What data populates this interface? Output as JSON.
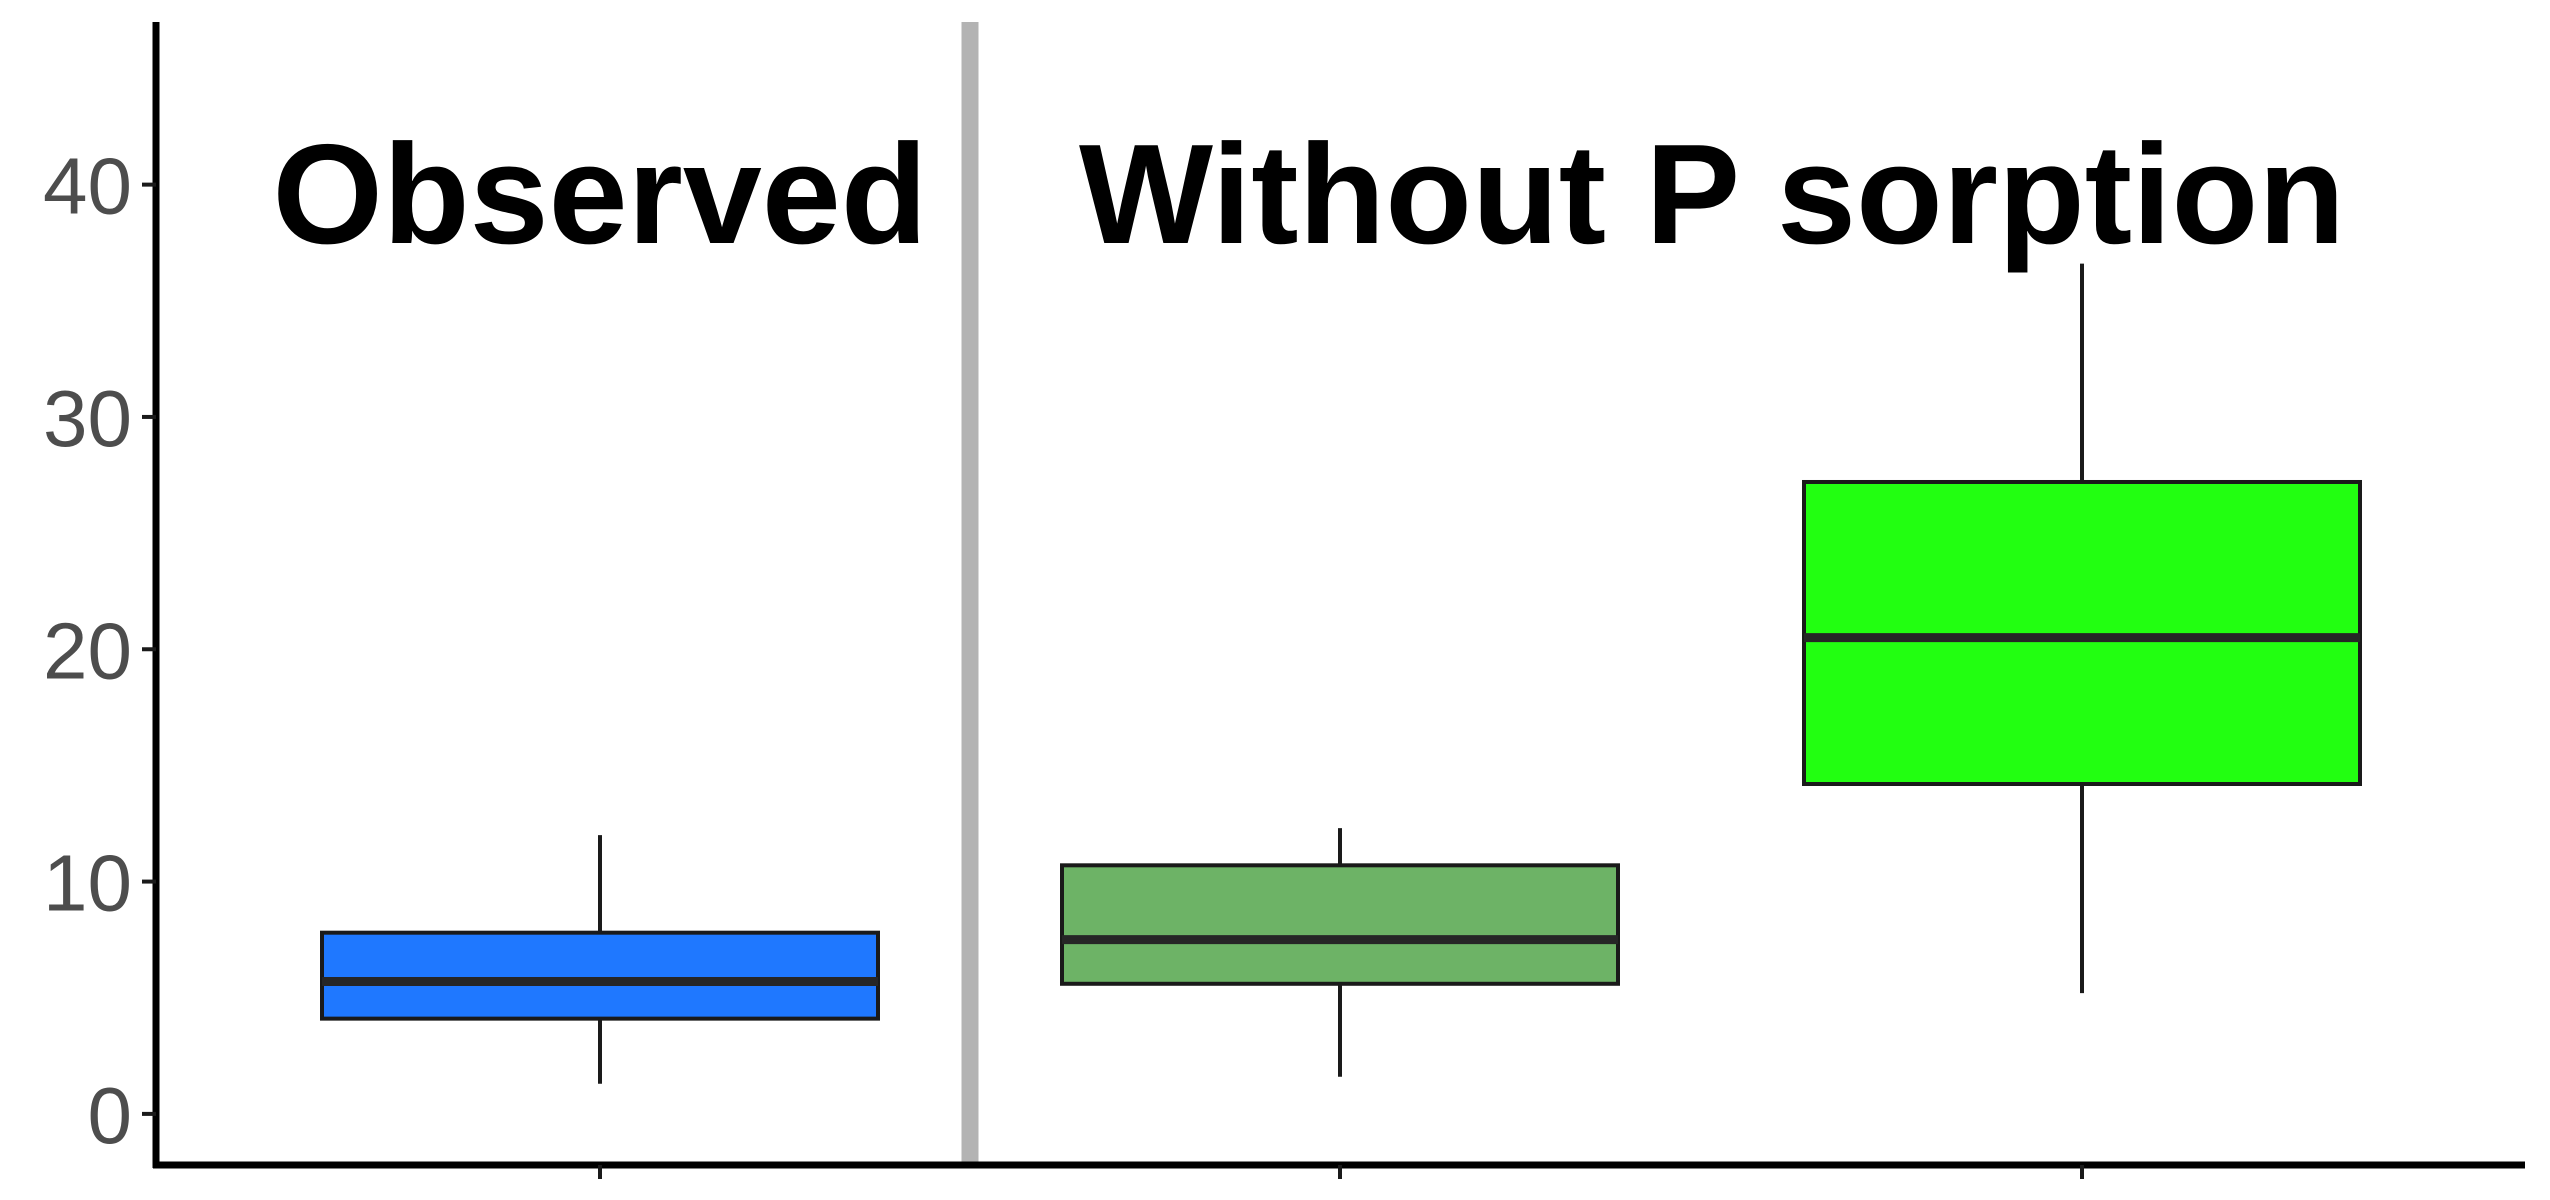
{
  "chart_data": {
    "type": "box",
    "title": "",
    "xlabel": "",
    "ylabel": "",
    "ylim": [
      -2.2,
      47
    ],
    "yticks": [
      0,
      10,
      20,
      30,
      40
    ],
    "grid": false,
    "legend": "none",
    "panels": [
      {
        "label": "Observed",
        "boxes": [
          0
        ]
      },
      {
        "label": "Without P sorption",
        "boxes": [
          1,
          2
        ]
      }
    ],
    "boxes": [
      {
        "color": "#1f78ff",
        "whisker_low": 1.3,
        "q1": 4.1,
        "median": 5.7,
        "q3": 7.8,
        "whisker_high": 12.0
      },
      {
        "color": "#6db366",
        "whisker_low": 1.6,
        "q1": 5.6,
        "median": 7.5,
        "q3": 10.7,
        "whisker_high": 12.3
      },
      {
        "color": "#22ff11",
        "whisker_low": 5.2,
        "q1": 14.2,
        "median": 20.5,
        "q3": 27.2,
        "whisker_high": 36.6
      }
    ]
  },
  "colors": {
    "axis": "#000000",
    "separator": "#b3b3b3",
    "box_outline": "#1a1a1a",
    "median_line": "#262626",
    "tick_text": "#4d4d4d"
  }
}
